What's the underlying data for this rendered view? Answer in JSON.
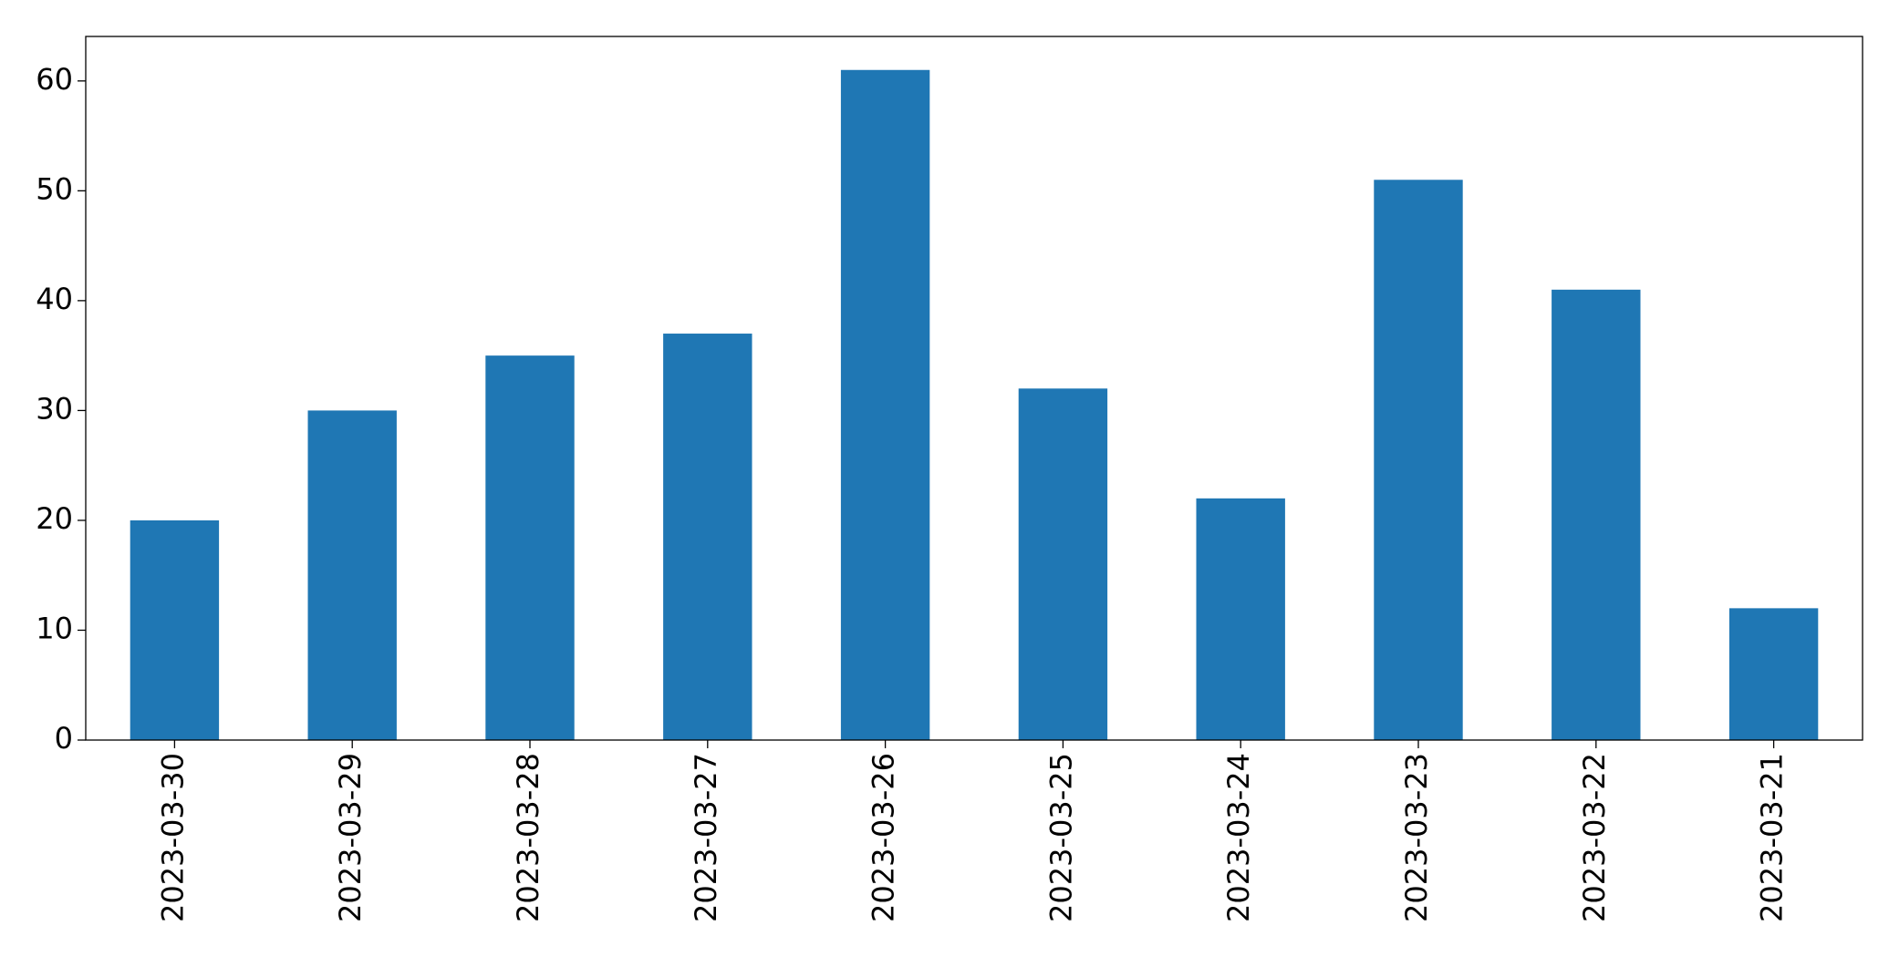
{
  "chart_data": {
    "type": "bar",
    "categories": [
      "2023-03-30",
      "2023-03-29",
      "2023-03-28",
      "2023-03-27",
      "2023-03-26",
      "2023-03-25",
      "2023-03-24",
      "2023-03-23",
      "2023-03-22",
      "2023-03-21"
    ],
    "values": [
      20,
      30,
      35,
      37,
      61,
      32,
      22,
      51,
      41,
      12
    ],
    "color": "#1f77b4",
    "ylim": [
      0,
      64.05
    ],
    "yticks": [
      0,
      10,
      20,
      30,
      40,
      50,
      60
    ],
    "grid": false
  }
}
